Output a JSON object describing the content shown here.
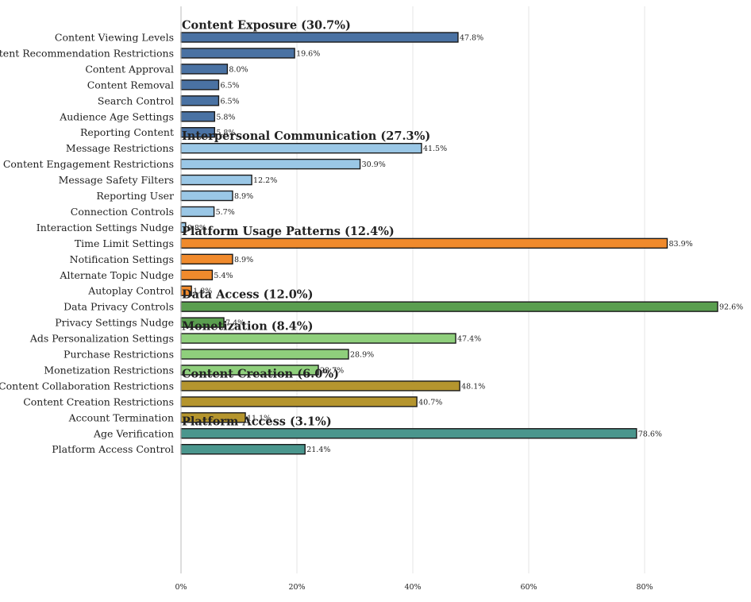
{
  "chart_data": {
    "type": "bar",
    "orientation": "horizontal",
    "xlim": [
      0,
      96
    ],
    "xticks": [
      {
        "value": 0,
        "label": "0%"
      },
      {
        "value": 20,
        "label": "20%"
      },
      {
        "value": 40,
        "label": "40%"
      },
      {
        "value": 60,
        "label": "60%"
      },
      {
        "value": 80,
        "label": "80%"
      }
    ],
    "grid": "vertical",
    "groups": [
      {
        "title": "Content Exposure (30.7%)",
        "color": "#4a72a3",
        "items": [
          {
            "label": "Content Viewing Levels",
            "value": 47.8,
            "value_label": "47.8%"
          },
          {
            "label": "Content Recommendation Restrictions",
            "value": 19.6,
            "value_label": "19.6%"
          },
          {
            "label": "Content Approval",
            "value": 8.0,
            "value_label": "8.0%"
          },
          {
            "label": "Content Removal",
            "value": 6.5,
            "value_label": "6.5%"
          },
          {
            "label": "Search Control",
            "value": 6.5,
            "value_label": "6.5%"
          },
          {
            "label": "Audience Age Settings",
            "value": 5.8,
            "value_label": "5.8%"
          },
          {
            "label": "Reporting Content",
            "value": 5.8,
            "value_label": "5.8%"
          }
        ]
      },
      {
        "title": "Interpersonal Communication (27.3%)",
        "color": "#9ac7e6",
        "items": [
          {
            "label": "Message Restrictions",
            "value": 41.5,
            "value_label": "41.5%"
          },
          {
            "label": "Content Engagement Restrictions",
            "value": 30.9,
            "value_label": "30.9%"
          },
          {
            "label": "Message Safety Filters",
            "value": 12.2,
            "value_label": "12.2%"
          },
          {
            "label": "Reporting User",
            "value": 8.9,
            "value_label": "8.9%"
          },
          {
            "label": "Connection Controls",
            "value": 5.7,
            "value_label": "5.7%"
          },
          {
            "label": "Interaction Settings Nudge",
            "value": 0.8,
            "value_label": "0.8%"
          }
        ]
      },
      {
        "title": "Platform Usage Patterns (12.4%)",
        "color": "#f08a2c",
        "items": [
          {
            "label": "Time Limit Settings",
            "value": 83.9,
            "value_label": "83.9%"
          },
          {
            "label": "Notification Settings",
            "value": 8.9,
            "value_label": "8.9%"
          },
          {
            "label": "Alternate Topic Nudge",
            "value": 5.4,
            "value_label": "5.4%"
          },
          {
            "label": "Autoplay Control",
            "value": 1.8,
            "value_label": "1.8%"
          }
        ]
      },
      {
        "title": "Data Access (12.0%)",
        "color": "#5a9e4f",
        "items": [
          {
            "label": "Data Privacy Controls",
            "value": 92.6,
            "value_label": "92.6%"
          },
          {
            "label": "Privacy Settings Nudge",
            "value": 7.4,
            "value_label": "7.4%"
          }
        ]
      },
      {
        "title": "Monetization (8.4%)",
        "color": "#8fcf7c",
        "items": [
          {
            "label": "Ads Personalization Settings",
            "value": 47.4,
            "value_label": "47.4%"
          },
          {
            "label": "Purchase Restrictions",
            "value": 28.9,
            "value_label": "28.9%"
          },
          {
            "label": "Monetization Restrictions",
            "value": 23.7,
            "value_label": "23.7%"
          }
        ]
      },
      {
        "title": "Content Creation (6.0%)",
        "color": "#b5952e",
        "items": [
          {
            "label": "Content Collaboration Restrictions",
            "value": 48.1,
            "value_label": "48.1%"
          },
          {
            "label": "Content Creation Restrictions",
            "value": 40.7,
            "value_label": "40.7%"
          },
          {
            "label": "Account Termination",
            "value": 11.1,
            "value_label": "11.1%"
          }
        ]
      },
      {
        "title": "Platform Access (3.1%)",
        "color": "#4a968d",
        "items": [
          {
            "label": "Age Verification",
            "value": 78.6,
            "value_label": "78.6%"
          },
          {
            "label": "Platform Access Control",
            "value": 21.4,
            "value_label": "21.4%"
          }
        ]
      }
    ]
  }
}
